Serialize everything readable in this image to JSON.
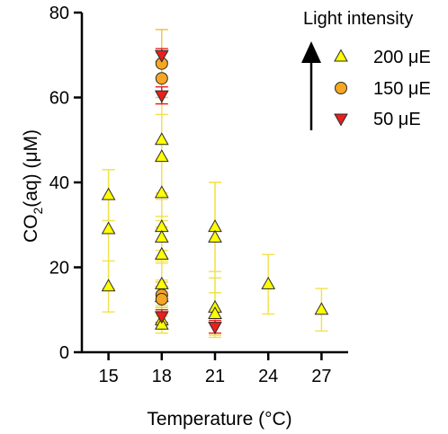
{
  "chart_data": {
    "type": "scatter",
    "xlabel": "Temperature (°C)",
    "ylabel_main": "CO",
    "ylabel_sub": "2",
    "ylabel_rest": "(aq) (μM)",
    "xlim": [
      13.5,
      28.5
    ],
    "ylim": [
      0,
      80
    ],
    "xticks": [
      15,
      18,
      21,
      24,
      27
    ],
    "yticks": [
      0,
      20,
      40,
      60,
      80
    ],
    "legend": {
      "title": "Light intensity",
      "placement": "top-right",
      "arrow": "up"
    },
    "series": [
      {
        "name": "200 μE",
        "marker": "triangle-up",
        "color": "#ffff00",
        "error_color": "#f2e24a",
        "points": [
          {
            "x": 15,
            "y": 37,
            "err": 6
          },
          {
            "x": 15,
            "y": 29,
            "err": 14
          },
          {
            "x": 15,
            "y": 15.5,
            "err": 6
          },
          {
            "x": 18,
            "y": 50,
            "err": 26
          },
          {
            "x": 18,
            "y": 46,
            "err": 10
          },
          {
            "x": 18,
            "y": 37.5,
            "err": 8
          },
          {
            "x": 18,
            "y": 29.5,
            "err": 8
          },
          {
            "x": 18,
            "y": 27,
            "err": 5
          },
          {
            "x": 18,
            "y": 23,
            "err": 8
          },
          {
            "x": 18,
            "y": 16,
            "err": 5
          },
          {
            "x": 18,
            "y": 13,
            "err": 4
          },
          {
            "x": 18,
            "y": 7.5,
            "err": 3
          },
          {
            "x": 18,
            "y": 6.5,
            "err": 2
          },
          {
            "x": 21,
            "y": 29.5,
            "err": 10.5
          },
          {
            "x": 21,
            "y": 27,
            "err": 13
          },
          {
            "x": 21,
            "y": 10.5,
            "err": 7
          },
          {
            "x": 21,
            "y": 9,
            "err": 5
          },
          {
            "x": 24,
            "y": 16,
            "err": 7
          },
          {
            "x": 27,
            "y": 10,
            "err": 5
          }
        ]
      },
      {
        "name": "150 μE",
        "marker": "circle",
        "color": "#f5a623",
        "error_color": "#f2c54a",
        "points": [
          {
            "x": 18,
            "y": 68,
            "err": 8
          },
          {
            "x": 18,
            "y": 64.5,
            "err": 6
          },
          {
            "x": 18,
            "y": 13.5,
            "err": 3
          },
          {
            "x": 18,
            "y": 12.5,
            "err": 3
          }
        ]
      },
      {
        "name": "50 μE",
        "marker": "triangle-down",
        "color": "#e8201c",
        "error_color": "#e8201c",
        "points": [
          {
            "x": 18,
            "y": 70,
            "err": 1.5
          },
          {
            "x": 18,
            "y": 60.5,
            "err": 2
          },
          {
            "x": 18,
            "y": 8.5,
            "err": 1.5
          },
          {
            "x": 21,
            "y": 6,
            "err": 1.5
          }
        ]
      }
    ]
  }
}
